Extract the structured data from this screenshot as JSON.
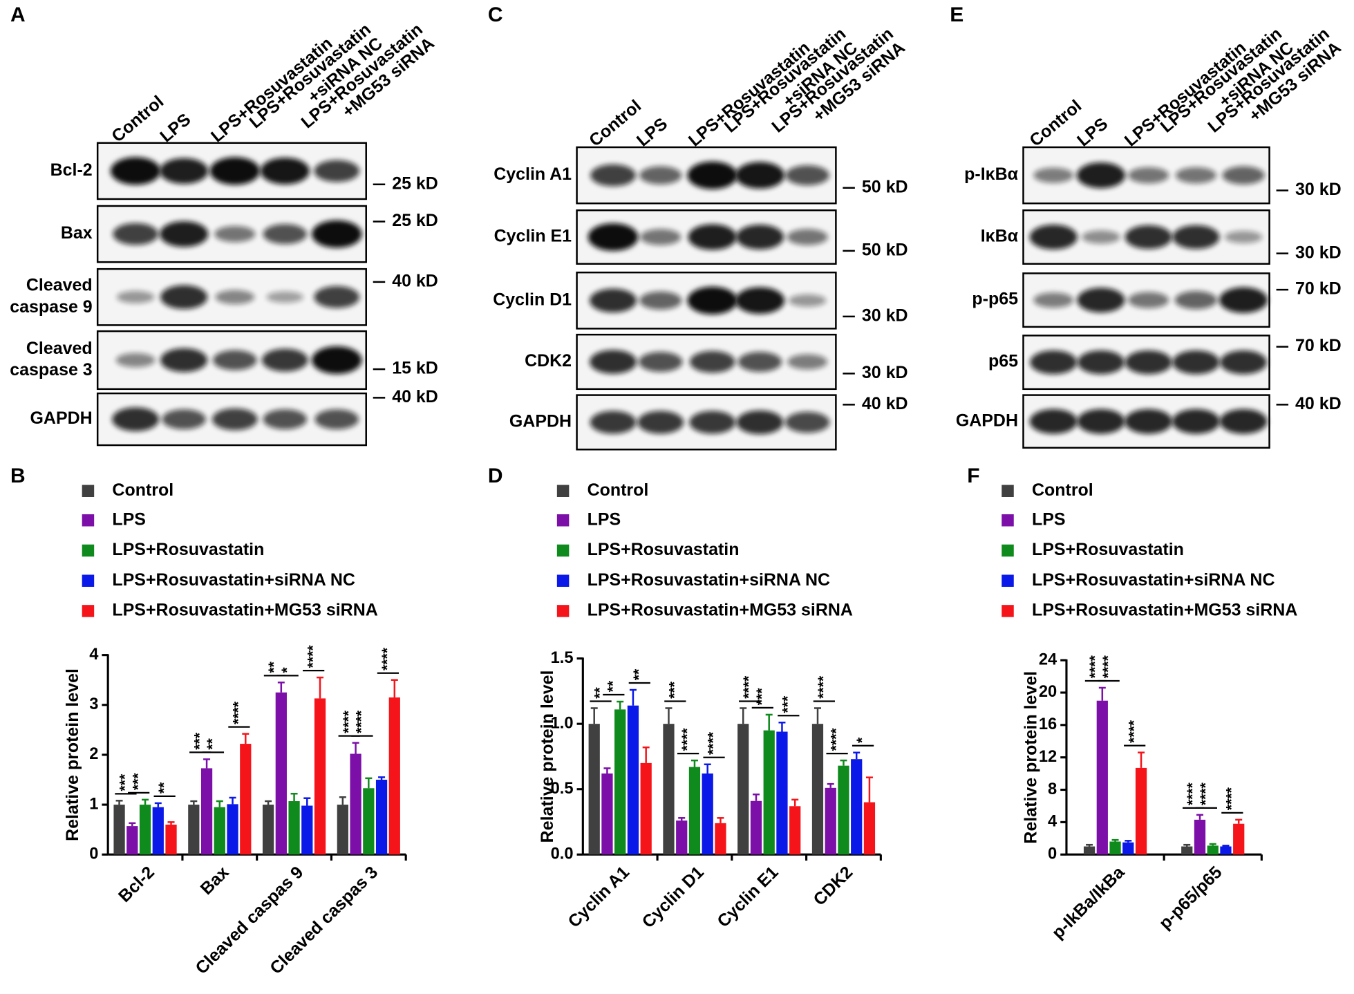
{
  "panel_labels": [
    "A",
    "B",
    "C",
    "D",
    "E",
    "F"
  ],
  "blots": [
    {
      "lanes": [
        [
          "Control"
        ],
        [
          "LPS"
        ],
        [
          "LPS+Rosuvastatin"
        ],
        [
          "LPS+Rosuvastatin",
          "+siRNA NC"
        ],
        [
          "LPS+Rosuvastatin",
          "+MG53 siRNA"
        ]
      ],
      "rows": [
        [
          "Bcl-2"
        ],
        [
          "Bax"
        ],
        [
          "Cleaved",
          "caspase 9"
        ],
        [
          "Cleaved",
          "caspase 3"
        ],
        [
          "GAPDH"
        ]
      ],
      "markers": [
        "25 kD",
        "25 kD",
        "40 kD",
        "15 kD",
        "40 kD"
      ]
    },
    {
      "lanes": [
        [
          "Control"
        ],
        [
          "LPS"
        ],
        [
          "LPS+Rosuvastatin"
        ],
        [
          "LPS+Rosuvastatin",
          "+siRNA NC"
        ],
        [
          "LPS+Rosuvastatin",
          "+MG53 siRNA"
        ]
      ],
      "rows": [
        [
          "Cyclin A1"
        ],
        [
          "Cyclin E1"
        ],
        [
          "Cyclin D1"
        ],
        [
          "CDK2"
        ],
        [
          "GAPDH"
        ]
      ],
      "markers": [
        "50 kD",
        "50 kD",
        "30 kD",
        "30 kD",
        "40 kD"
      ]
    },
    {
      "lanes": [
        [
          "Control"
        ],
        [
          "LPS"
        ],
        [
          "LPS+Rosuvastatin"
        ],
        [
          "LPS+Rosuvastatin",
          "+siRNA NC"
        ],
        [
          "LPS+Rosuvastatin",
          "+MG53 siRNA"
        ]
      ],
      "rows": [
        [
          "p-IκBα"
        ],
        [
          "IκBα"
        ],
        [
          "p-p65"
        ],
        [
          "p65"
        ],
        [
          "GAPDH"
        ]
      ],
      "markers": [
        "30 kD",
        "30 kD",
        "70 kD",
        "70 kD",
        "40 kD"
      ]
    }
  ],
  "chart_data": [
    {
      "type": "bar",
      "ylabel": "Relative protein level",
      "categories": [
        "Bcl-2",
        "Bax",
        "Cleaved caspas 9",
        "Cleaved caspas 3"
      ],
      "ylim": [
        0,
        4
      ],
      "yticks": [
        0,
        1,
        2,
        3,
        4
      ],
      "series": [
        {
          "name": "Control",
          "color": "#404040",
          "values": [
            1,
            1,
            1,
            1
          ],
          "errors": [
            0.08,
            0.07,
            0.07,
            0.15
          ]
        },
        {
          "name": "LPS",
          "color": "#7b0fa8",
          "values": [
            0.57,
            1.73,
            3.25,
            2.02
          ],
          "errors": [
            0.06,
            0.18,
            0.2,
            0.22
          ]
        },
        {
          "name": "LPS+Rosuvastatin",
          "color": "#0f8a1c",
          "values": [
            1.0,
            0.95,
            1.07,
            1.33
          ],
          "errors": [
            0.1,
            0.12,
            0.15,
            0.2
          ]
        },
        {
          "name": "LPS+Rosuvastatin+siRNA NC",
          "color": "#0a18e8",
          "values": [
            0.95,
            1.01,
            0.98,
            1.5
          ],
          "errors": [
            0.08,
            0.13,
            0.15,
            0.05
          ]
        },
        {
          "name": "LPS+Rosuvastatin+MG53 siRNA",
          "color": "#f5141a",
          "values": [
            0.6,
            2.22,
            3.13,
            3.15
          ],
          "errors": [
            0.05,
            0.2,
            0.42,
            0.35
          ]
        }
      ],
      "annotations": [
        [
          "***",
          "***",
          "**"
        ],
        [
          "***",
          "**",
          "****"
        ],
        [
          "**",
          "*",
          "****"
        ],
        [
          "****",
          "****",
          "****"
        ]
      ]
    },
    {
      "type": "bar",
      "ylabel": "Relative protein level",
      "categories": [
        "Cyclin A1",
        "Cyclin D1",
        "Cyclin E1",
        "CDK2"
      ],
      "ylim": [
        0,
        1.5
      ],
      "yticks": [
        {
          "value": 0,
          "label": "0.0"
        },
        0.5,
        {
          "value": 1,
          "label": "1.0"
        },
        1.5
      ],
      "series": [
        {
          "name": "Control",
          "color": "#404040",
          "values": [
            1,
            1,
            1,
            1
          ],
          "errors": [
            0.12,
            0.12,
            0.12,
            0.12
          ]
        },
        {
          "name": "LPS",
          "color": "#7b0fa8",
          "values": [
            0.62,
            0.26,
            0.41,
            0.51
          ],
          "errors": [
            0.04,
            0.02,
            0.05,
            0.03
          ]
        },
        {
          "name": "LPS+Rosuvastatin",
          "color": "#0f8a1c",
          "values": [
            1.11,
            0.67,
            0.95,
            0.68
          ],
          "errors": [
            0.06,
            0.05,
            0.12,
            0.04
          ]
        },
        {
          "name": "LPS+Rosuvastatin+siRNA NC",
          "color": "#0a18e8",
          "values": [
            1.14,
            0.62,
            0.94,
            0.73
          ],
          "errors": [
            0.12,
            0.07,
            0.07,
            0.05
          ]
        },
        {
          "name": "LPS+Rosuvastatin+MG53 siRNA",
          "color": "#f5141a",
          "values": [
            0.7,
            0.24,
            0.37,
            0.4
          ],
          "errors": [
            0.12,
            0.04,
            0.05,
            0.19
          ]
        }
      ],
      "annotations": [
        [
          "**",
          "**",
          "**"
        ],
        [
          "***",
          "****",
          "****"
        ],
        [
          "****",
          "***",
          "***"
        ],
        [
          "****",
          "****",
          "*"
        ]
      ]
    },
    {
      "type": "bar",
      "ylabel": "Relative protein level",
      "categories": [
        "p-IkBa/IkBa",
        "p-p65/p65"
      ],
      "ylim": [
        0,
        24
      ],
      "yticks": [
        0,
        4,
        8,
        12,
        16,
        20,
        24
      ],
      "series": [
        {
          "name": "Control",
          "color": "#404040",
          "values": [
            1,
            1
          ],
          "errors": [
            0.2,
            0.2
          ]
        },
        {
          "name": "LPS",
          "color": "#7b0fa8",
          "values": [
            19,
            4.3
          ],
          "errors": [
            1.6,
            0.6
          ]
        },
        {
          "name": "LPS+Rosuvastatin",
          "color": "#0f8a1c",
          "values": [
            1.6,
            1.1
          ],
          "errors": [
            0.2,
            0.2
          ]
        },
        {
          "name": "LPS+Rosuvastatin+siRNA NC",
          "color": "#0a18e8",
          "values": [
            1.5,
            1.0
          ],
          "errors": [
            0.2,
            0.1
          ]
        },
        {
          "name": "LPS+Rosuvastatin+MG53 siRNA",
          "color": "#f5141a",
          "values": [
            10.7,
            3.8
          ],
          "errors": [
            1.9,
            0.5
          ]
        }
      ],
      "annotations": [
        [
          "****",
          "****",
          "****"
        ],
        [
          "****",
          "****",
          "****"
        ]
      ]
    }
  ]
}
